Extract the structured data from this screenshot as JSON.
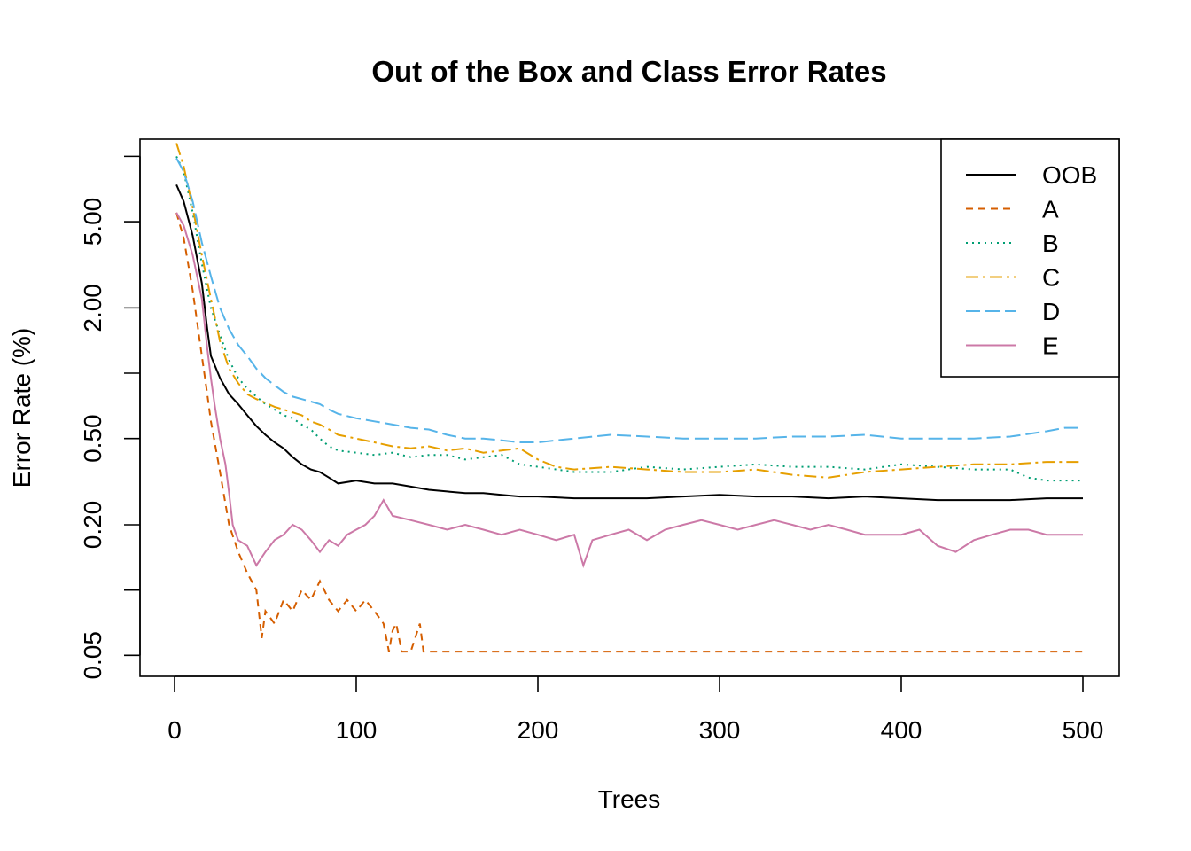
{
  "chart_data": {
    "type": "line",
    "title": "Out of the Box and Class Error Rates",
    "xlabel": "Trees",
    "ylabel": "Error Rate (%)",
    "xlim": [
      0,
      500
    ],
    "ylim": [
      0.04,
      12
    ],
    "y_scale": "log",
    "x_ticks": [
      0,
      100,
      200,
      300,
      400,
      500
    ],
    "x_tick_labels": [
      "0",
      "100",
      "200",
      "300",
      "400",
      "500"
    ],
    "y_ticks": [
      0.05,
      0.1,
      0.2,
      0.5,
      1,
      2,
      5,
      10
    ],
    "y_tick_labels": [
      "0.05",
      "",
      "0.20",
      "0.50",
      "",
      "2.00",
      "5.00",
      ""
    ],
    "grid": false,
    "legend_position": "top-right",
    "series": [
      {
        "name": "OOB",
        "color": "#000000",
        "dash": "solid",
        "points": [
          [
            1,
            7.4
          ],
          [
            5,
            6.2
          ],
          [
            10,
            4.3
          ],
          [
            15,
            2.6
          ],
          [
            18,
            1.6
          ],
          [
            20,
            1.2
          ],
          [
            25,
            0.95
          ],
          [
            30,
            0.8
          ],
          [
            35,
            0.72
          ],
          [
            40,
            0.64
          ],
          [
            45,
            0.57
          ],
          [
            50,
            0.52
          ],
          [
            55,
            0.48
          ],
          [
            60,
            0.45
          ],
          [
            65,
            0.41
          ],
          [
            70,
            0.38
          ],
          [
            75,
            0.36
          ],
          [
            80,
            0.35
          ],
          [
            85,
            0.33
          ],
          [
            90,
            0.31
          ],
          [
            100,
            0.32
          ],
          [
            110,
            0.31
          ],
          [
            120,
            0.31
          ],
          [
            130,
            0.3
          ],
          [
            140,
            0.29
          ],
          [
            150,
            0.285
          ],
          [
            160,
            0.28
          ],
          [
            170,
            0.28
          ],
          [
            180,
            0.275
          ],
          [
            190,
            0.27
          ],
          [
            200,
            0.27
          ],
          [
            220,
            0.265
          ],
          [
            240,
            0.265
          ],
          [
            260,
            0.265
          ],
          [
            280,
            0.27
          ],
          [
            300,
            0.275
          ],
          [
            320,
            0.27
          ],
          [
            340,
            0.27
          ],
          [
            360,
            0.265
          ],
          [
            380,
            0.27
          ],
          [
            400,
            0.265
          ],
          [
            420,
            0.26
          ],
          [
            440,
            0.26
          ],
          [
            460,
            0.26
          ],
          [
            480,
            0.265
          ],
          [
            500,
            0.265
          ]
        ]
      },
      {
        "name": "A",
        "color": "#D55E00",
        "dash": "8,6",
        "points": [
          [
            1,
            5.5
          ],
          [
            5,
            4.2
          ],
          [
            10,
            2.4
          ],
          [
            15,
            1.2
          ],
          [
            18,
            0.8
          ],
          [
            20,
            0.6
          ],
          [
            25,
            0.35
          ],
          [
            28,
            0.25
          ],
          [
            30,
            0.2
          ],
          [
            35,
            0.15
          ],
          [
            40,
            0.12
          ],
          [
            45,
            0.1
          ],
          [
            48,
            0.06
          ],
          [
            50,
            0.08
          ],
          [
            55,
            0.07
          ],
          [
            60,
            0.09
          ],
          [
            65,
            0.08
          ],
          [
            70,
            0.1
          ],
          [
            75,
            0.09
          ],
          [
            80,
            0.11
          ],
          [
            85,
            0.09
          ],
          [
            90,
            0.08
          ],
          [
            95,
            0.09
          ],
          [
            100,
            0.08
          ],
          [
            105,
            0.09
          ],
          [
            110,
            0.08
          ],
          [
            115,
            0.07
          ],
          [
            118,
            0.052
          ],
          [
            120,
            0.065
          ],
          [
            122,
            0.07
          ],
          [
            125,
            0.052
          ],
          [
            130,
            0.052
          ],
          [
            135,
            0.07
          ],
          [
            137,
            0.052
          ],
          [
            140,
            0.052
          ],
          [
            200,
            0.052
          ],
          [
            300,
            0.052
          ],
          [
            400,
            0.052
          ],
          [
            500,
            0.052
          ]
        ]
      },
      {
        "name": "B",
        "color": "#009E73",
        "dash": "2,5",
        "points": [
          [
            1,
            10
          ],
          [
            5,
            8.5
          ],
          [
            10,
            5.5
          ],
          [
            15,
            3.2
          ],
          [
            20,
            2.0
          ],
          [
            25,
            1.5
          ],
          [
            30,
            1.15
          ],
          [
            35,
            0.95
          ],
          [
            40,
            0.85
          ],
          [
            45,
            0.78
          ],
          [
            50,
            0.72
          ],
          [
            55,
            0.68
          ],
          [
            60,
            0.64
          ],
          [
            65,
            0.62
          ],
          [
            70,
            0.58
          ],
          [
            75,
            0.55
          ],
          [
            80,
            0.5
          ],
          [
            85,
            0.46
          ],
          [
            90,
            0.44
          ],
          [
            100,
            0.43
          ],
          [
            110,
            0.42
          ],
          [
            120,
            0.43
          ],
          [
            130,
            0.41
          ],
          [
            140,
            0.42
          ],
          [
            150,
            0.42
          ],
          [
            160,
            0.4
          ],
          [
            170,
            0.41
          ],
          [
            180,
            0.42
          ],
          [
            190,
            0.38
          ],
          [
            200,
            0.37
          ],
          [
            220,
            0.35
          ],
          [
            240,
            0.35
          ],
          [
            260,
            0.37
          ],
          [
            280,
            0.36
          ],
          [
            300,
            0.37
          ],
          [
            320,
            0.38
          ],
          [
            340,
            0.37
          ],
          [
            360,
            0.37
          ],
          [
            380,
            0.36
          ],
          [
            400,
            0.38
          ],
          [
            420,
            0.37
          ],
          [
            440,
            0.36
          ],
          [
            460,
            0.36
          ],
          [
            470,
            0.33
          ],
          [
            480,
            0.32
          ],
          [
            500,
            0.32
          ]
        ]
      },
      {
        "name": "C",
        "color": "#E69F00",
        "dash": "14,5,3,5",
        "points": [
          [
            1,
            11.5
          ],
          [
            5,
            9
          ],
          [
            10,
            5.8
          ],
          [
            15,
            3.5
          ],
          [
            20,
            2.2
          ],
          [
            25,
            1.4
          ],
          [
            30,
            1.05
          ],
          [
            35,
            0.9
          ],
          [
            40,
            0.8
          ],
          [
            45,
            0.76
          ],
          [
            50,
            0.73
          ],
          [
            55,
            0.7
          ],
          [
            60,
            0.68
          ],
          [
            65,
            0.66
          ],
          [
            70,
            0.64
          ],
          [
            75,
            0.6
          ],
          [
            80,
            0.58
          ],
          [
            85,
            0.55
          ],
          [
            90,
            0.52
          ],
          [
            100,
            0.5
          ],
          [
            110,
            0.48
          ],
          [
            120,
            0.46
          ],
          [
            130,
            0.45
          ],
          [
            140,
            0.46
          ],
          [
            150,
            0.44
          ],
          [
            160,
            0.45
          ],
          [
            170,
            0.43
          ],
          [
            180,
            0.44
          ],
          [
            190,
            0.45
          ],
          [
            200,
            0.4
          ],
          [
            210,
            0.37
          ],
          [
            220,
            0.36
          ],
          [
            240,
            0.37
          ],
          [
            260,
            0.36
          ],
          [
            280,
            0.35
          ],
          [
            300,
            0.35
          ],
          [
            320,
            0.36
          ],
          [
            340,
            0.34
          ],
          [
            360,
            0.33
          ],
          [
            380,
            0.35
          ],
          [
            400,
            0.36
          ],
          [
            420,
            0.37
          ],
          [
            440,
            0.38
          ],
          [
            460,
            0.38
          ],
          [
            480,
            0.39
          ],
          [
            500,
            0.39
          ]
        ]
      },
      {
        "name": "D",
        "color": "#56B4E9",
        "dash": "16,6",
        "points": [
          [
            1,
            9.8
          ],
          [
            5,
            8.5
          ],
          [
            10,
            6.2
          ],
          [
            15,
            4.0
          ],
          [
            20,
            2.8
          ],
          [
            25,
            2.0
          ],
          [
            30,
            1.6
          ],
          [
            35,
            1.35
          ],
          [
            40,
            1.2
          ],
          [
            45,
            1.05
          ],
          [
            50,
            0.95
          ],
          [
            55,
            0.88
          ],
          [
            60,
            0.82
          ],
          [
            65,
            0.78
          ],
          [
            70,
            0.76
          ],
          [
            75,
            0.74
          ],
          [
            80,
            0.72
          ],
          [
            85,
            0.68
          ],
          [
            90,
            0.65
          ],
          [
            100,
            0.62
          ],
          [
            110,
            0.6
          ],
          [
            120,
            0.58
          ],
          [
            130,
            0.56
          ],
          [
            140,
            0.55
          ],
          [
            150,
            0.52
          ],
          [
            160,
            0.5
          ],
          [
            170,
            0.5
          ],
          [
            180,
            0.49
          ],
          [
            190,
            0.48
          ],
          [
            200,
            0.48
          ],
          [
            210,
            0.49
          ],
          [
            220,
            0.5
          ],
          [
            240,
            0.52
          ],
          [
            260,
            0.51
          ],
          [
            280,
            0.5
          ],
          [
            300,
            0.5
          ],
          [
            320,
            0.5
          ],
          [
            340,
            0.51
          ],
          [
            360,
            0.51
          ],
          [
            380,
            0.52
          ],
          [
            400,
            0.5
          ],
          [
            420,
            0.5
          ],
          [
            440,
            0.5
          ],
          [
            460,
            0.51
          ],
          [
            480,
            0.54
          ],
          [
            490,
            0.56
          ],
          [
            500,
            0.56
          ]
        ]
      },
      {
        "name": "E",
        "color": "#CC79A7",
        "dash": "solid",
        "points": [
          [
            1,
            5.5
          ],
          [
            5,
            4.8
          ],
          [
            10,
            3.5
          ],
          [
            15,
            2.2
          ],
          [
            18,
            1.3
          ],
          [
            20,
            0.95
          ],
          [
            22,
            0.72
          ],
          [
            25,
            0.5
          ],
          [
            28,
            0.38
          ],
          [
            30,
            0.28
          ],
          [
            32,
            0.2
          ],
          [
            35,
            0.17
          ],
          [
            40,
            0.16
          ],
          [
            45,
            0.13
          ],
          [
            50,
            0.15
          ],
          [
            55,
            0.17
          ],
          [
            60,
            0.18
          ],
          [
            65,
            0.2
          ],
          [
            70,
            0.19
          ],
          [
            75,
            0.17
          ],
          [
            80,
            0.15
          ],
          [
            85,
            0.17
          ],
          [
            90,
            0.16
          ],
          [
            95,
            0.18
          ],
          [
            100,
            0.19
          ],
          [
            105,
            0.2
          ],
          [
            110,
            0.22
          ],
          [
            115,
            0.26
          ],
          [
            120,
            0.22
          ],
          [
            130,
            0.21
          ],
          [
            140,
            0.2
          ],
          [
            150,
            0.19
          ],
          [
            160,
            0.2
          ],
          [
            170,
            0.19
          ],
          [
            180,
            0.18
          ],
          [
            190,
            0.19
          ],
          [
            200,
            0.18
          ],
          [
            210,
            0.17
          ],
          [
            220,
            0.18
          ],
          [
            225,
            0.13
          ],
          [
            230,
            0.17
          ],
          [
            240,
            0.18
          ],
          [
            250,
            0.19
          ],
          [
            260,
            0.17
          ],
          [
            270,
            0.19
          ],
          [
            280,
            0.2
          ],
          [
            290,
            0.21
          ],
          [
            300,
            0.2
          ],
          [
            310,
            0.19
          ],
          [
            320,
            0.2
          ],
          [
            330,
            0.21
          ],
          [
            340,
            0.2
          ],
          [
            350,
            0.19
          ],
          [
            360,
            0.2
          ],
          [
            370,
            0.19
          ],
          [
            380,
            0.18
          ],
          [
            400,
            0.18
          ],
          [
            410,
            0.19
          ],
          [
            420,
            0.16
          ],
          [
            430,
            0.15
          ],
          [
            440,
            0.17
          ],
          [
            450,
            0.18
          ],
          [
            460,
            0.19
          ],
          [
            470,
            0.19
          ],
          [
            480,
            0.18
          ],
          [
            490,
            0.18
          ],
          [
            500,
            0.18
          ]
        ]
      }
    ]
  }
}
